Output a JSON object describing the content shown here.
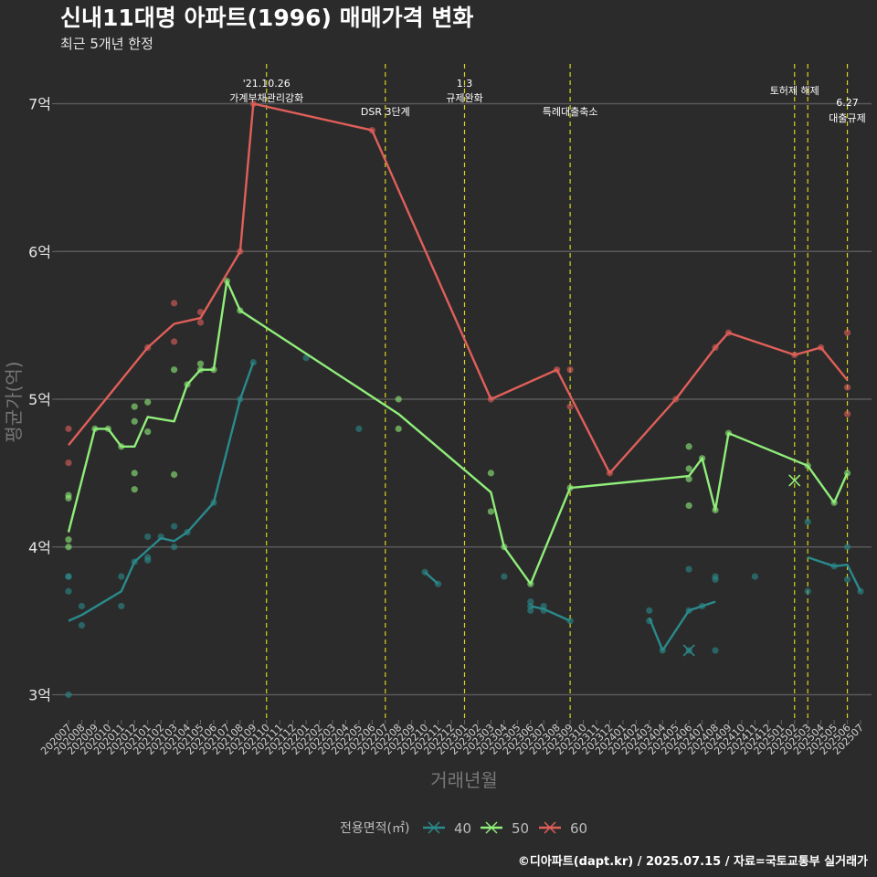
{
  "title": "신내11대명 아파트(1996) 매매가격 변화",
  "subtitle": "최근 5개년 한정",
  "caption": "©디아파트(dapt.kr) / 2025.07.15 / 자료=국토교통부 실거래가",
  "chart_data": {
    "type": "line",
    "xlabel": "거래년월",
    "ylabel": "평균가(억)",
    "ylim": [
      2.83,
      7.3
    ],
    "y_ticks": [
      {
        "value": 3,
        "label": "3억"
      },
      {
        "value": 4,
        "label": "4억"
      },
      {
        "value": 5,
        "label": "5억"
      },
      {
        "value": 6,
        "label": "6억"
      },
      {
        "value": 7,
        "label": "7억"
      }
    ],
    "categories": [
      "202007",
      "202008",
      "202009",
      "202010",
      "202011",
      "202012",
      "202101",
      "202102",
      "202103",
      "202104",
      "202105",
      "202106",
      "202107",
      "202108",
      "202109",
      "202110",
      "202111",
      "202112",
      "202201",
      "202202",
      "202203",
      "202204",
      "202205",
      "202206",
      "202207",
      "202208",
      "202209",
      "202210",
      "202211",
      "202212",
      "202301",
      "202302",
      "202303",
      "202304",
      "202305",
      "202306",
      "202307",
      "202308",
      "202309",
      "202310",
      "202311",
      "202312",
      "202401",
      "202402",
      "202403",
      "202404",
      "202405",
      "202406",
      "202407",
      "202408",
      "202409",
      "202410",
      "202411",
      "202412",
      "202501",
      "202502",
      "202503",
      "202504",
      "202505",
      "202506",
      "202507"
    ],
    "events": [
      {
        "month": "202110",
        "lines": [
          "'21.10.26",
          "가계부채관리강화"
        ]
      },
      {
        "month": "202207",
        "lines": [
          "DSR 3단계"
        ]
      },
      {
        "month": "202301",
        "lines": [
          "1.3",
          "규제완화"
        ]
      },
      {
        "month": "202309",
        "lines": [
          "특례대출축소"
        ]
      },
      {
        "month": "202502",
        "lines": [
          "토허제 해제"
        ]
      },
      {
        "month": "202503",
        "lines": []
      },
      {
        "month": "202506",
        "lines": [
          "6.27",
          "대출규제"
        ]
      }
    ],
    "legend_title": "전용면적(㎡)",
    "legend_position": "bottom",
    "series": [
      {
        "name": "40",
        "color": "#2a8a8c",
        "line": [
          [
            "202007",
            3.5
          ],
          [
            "202008",
            3.54
          ],
          [
            "202011",
            3.7
          ],
          [
            "202012",
            3.9
          ],
          [
            "202101",
            3.98
          ],
          [
            "202102",
            4.06
          ],
          [
            "202103",
            4.04
          ],
          [
            "202104",
            4.1
          ],
          [
            "202106",
            4.3
          ],
          [
            "202108",
            5.0
          ],
          [
            "202109",
            5.25
          ],
          null,
          [
            "202210",
            3.83
          ],
          [
            "202211",
            3.75
          ],
          null,
          [
            "202306",
            3.6
          ],
          [
            "202307",
            3.58
          ],
          [
            "202309",
            3.5
          ],
          null,
          [
            "202403",
            3.52
          ],
          [
            "202404",
            3.3
          ],
          [
            "202406",
            3.57
          ],
          [
            "202407",
            3.6
          ],
          [
            "202408",
            3.63
          ],
          null,
          [
            "202503",
            3.93
          ],
          [
            "202505",
            3.87
          ],
          [
            "202506",
            3.88
          ],
          [
            "202507",
            3.7
          ]
        ],
        "points": [
          [
            "202007",
            3.8
          ],
          [
            "202007",
            3.7
          ],
          [
            "202007",
            3.0
          ],
          [
            "202007",
            3.8
          ],
          [
            "202008",
            3.6
          ],
          [
            "202008",
            3.47
          ],
          [
            "202011",
            3.8
          ],
          [
            "202011",
            3.6
          ],
          [
            "202012",
            3.9
          ],
          [
            "202101",
            4.07
          ],
          [
            "202101",
            3.91
          ],
          [
            "202101",
            3.93
          ],
          [
            "202102",
            4.07
          ],
          [
            "202103",
            4.0
          ],
          [
            "202103",
            4.14
          ],
          [
            "202104",
            4.1
          ],
          [
            "202106",
            4.3
          ],
          [
            "202108",
            5.0
          ],
          [
            "202109",
            5.25
          ],
          [
            "202201",
            5.28
          ],
          [
            "202205",
            4.8
          ],
          [
            "202210",
            3.83
          ],
          [
            "202211",
            3.75
          ],
          [
            "202304",
            3.8
          ],
          [
            "202306",
            3.6
          ],
          [
            "202306",
            3.63
          ],
          [
            "202306",
            3.57
          ],
          [
            "202307",
            3.6
          ],
          [
            "202307",
            3.57
          ],
          [
            "202309",
            3.5
          ],
          [
            "202403",
            3.57
          ],
          [
            "202403",
            3.5
          ],
          [
            "202404",
            3.3
          ],
          [
            "202406",
            3.85
          ],
          [
            "202406",
            3.57
          ],
          [
            "202406",
            3.3
          ],
          [
            "202407",
            3.6
          ],
          [
            "202408",
            3.8
          ],
          [
            "202408",
            3.78
          ],
          [
            "202408",
            3.3
          ],
          [
            "202411",
            3.8
          ],
          [
            "202503",
            3.7
          ],
          [
            "202503",
            4.17
          ],
          [
            "202505",
            3.87
          ],
          [
            "202506",
            3.78
          ],
          [
            "202506",
            4.0
          ],
          [
            "202507",
            3.7
          ]
        ],
        "cancelled": [
          [
            "202406",
            3.3
          ]
        ]
      },
      {
        "name": "50",
        "color": "#90ee7a",
        "line": [
          [
            "202007",
            4.1
          ],
          [
            "202009",
            4.8
          ],
          [
            "202010",
            4.8
          ],
          [
            "202011",
            4.68
          ],
          [
            "202012",
            4.68
          ],
          [
            "202101",
            4.88
          ],
          [
            "202103",
            4.85
          ],
          [
            "202104",
            5.1
          ],
          [
            "202105",
            5.2
          ],
          [
            "202106",
            5.2
          ],
          [
            "202107",
            5.8
          ],
          [
            "202108",
            5.6
          ],
          [
            "202208",
            4.9
          ],
          [
            "202303",
            4.37
          ],
          [
            "202304",
            4.0
          ],
          [
            "202306",
            3.75
          ],
          [
            "202309",
            4.4
          ],
          [
            "202406",
            4.48
          ],
          [
            "202407",
            4.6
          ],
          [
            "202408",
            4.25
          ],
          [
            "202409",
            4.77
          ],
          [
            "202503",
            4.55
          ],
          [
            "202505",
            4.3
          ],
          [
            "202506",
            4.5
          ]
        ],
        "points": [
          [
            "202007",
            4.35
          ],
          [
            "202007",
            4.33
          ],
          [
            "202007",
            4.05
          ],
          [
            "202007",
            4.0
          ],
          [
            "202009",
            4.8
          ],
          [
            "202010",
            4.8
          ],
          [
            "202011",
            4.68
          ],
          [
            "202012",
            4.95
          ],
          [
            "202012",
            4.85
          ],
          [
            "202012",
            4.5
          ],
          [
            "202012",
            4.39
          ],
          [
            "202101",
            4.98
          ],
          [
            "202101",
            4.78
          ],
          [
            "202103",
            5.2
          ],
          [
            "202103",
            4.49
          ],
          [
            "202104",
            5.1
          ],
          [
            "202105",
            5.24
          ],
          [
            "202105",
            5.2
          ],
          [
            "202106",
            5.2
          ],
          [
            "202107",
            5.8
          ],
          [
            "202108",
            5.6
          ],
          [
            "202208",
            5.0
          ],
          [
            "202208",
            4.8
          ],
          [
            "202303",
            4.5
          ],
          [
            "202303",
            4.24
          ],
          [
            "202304",
            4.0
          ],
          [
            "202306",
            3.75
          ],
          [
            "202309",
            4.4
          ],
          [
            "202406",
            4.68
          ],
          [
            "202406",
            4.53
          ],
          [
            "202406",
            4.46
          ],
          [
            "202406",
            4.28
          ],
          [
            "202407",
            4.6
          ],
          [
            "202408",
            4.25
          ],
          [
            "202409",
            4.77
          ],
          [
            "202503",
            4.55
          ],
          [
            "202505",
            4.3
          ],
          [
            "202506",
            4.5
          ]
        ],
        "cancelled": [
          [
            "202502",
            4.45
          ]
        ]
      },
      {
        "name": "60",
        "color": "#e05f5a",
        "line": [
          [
            "202007",
            4.69
          ],
          [
            "202101",
            5.35
          ],
          [
            "202103",
            5.51
          ],
          [
            "202105",
            5.55
          ],
          [
            "202108",
            6.0
          ],
          [
            "202109",
            7.0
          ],
          [
            "202206",
            6.82
          ],
          [
            "202303",
            5.0
          ],
          [
            "202308",
            5.2
          ],
          [
            "202312",
            4.5
          ],
          [
            "202405",
            5.0
          ],
          [
            "202408",
            5.35
          ],
          [
            "202409",
            5.45
          ],
          [
            "202502",
            5.3
          ],
          [
            "202504",
            5.35
          ],
          [
            "202506",
            5.13
          ]
        ],
        "points": [
          [
            "202007",
            4.8
          ],
          [
            "202007",
            4.57
          ],
          [
            "202101",
            5.35
          ],
          [
            "202103",
            5.65
          ],
          [
            "202103",
            5.39
          ],
          [
            "202105",
            5.59
          ],
          [
            "202105",
            5.52
          ],
          [
            "202108",
            6.0
          ],
          [
            "202109",
            7.0
          ],
          [
            "202206",
            6.82
          ],
          [
            "202303",
            5.0
          ],
          [
            "202308",
            5.2
          ],
          [
            "202309",
            5.2
          ],
          [
            "202309",
            4.95
          ],
          [
            "202312",
            4.5
          ],
          [
            "202405",
            5.0
          ],
          [
            "202408",
            5.35
          ],
          [
            "202409",
            5.45
          ],
          [
            "202502",
            5.3
          ],
          [
            "202504",
            5.35
          ],
          [
            "202506",
            5.45
          ],
          [
            "202506",
            5.08
          ],
          [
            "202506",
            4.9
          ]
        ],
        "cancelled": []
      }
    ]
  }
}
